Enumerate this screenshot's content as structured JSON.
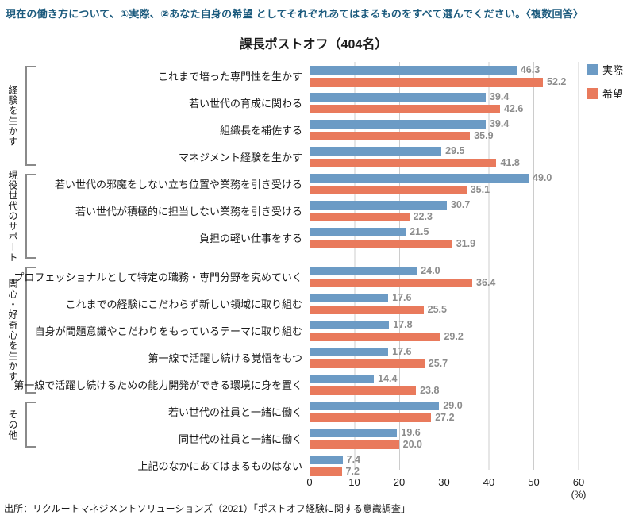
{
  "page": {
    "instruction": "現在の働き方について、①実際、②あなた自身の希望 としてそれぞれあてはまるものをすべて選んでください。〈複数回答〉",
    "source": "出所：リクルートマネジメントソリューションズ（2021）「ポストオフ経験に関する意識調査」"
  },
  "colors": {
    "actual": "#6C9BC5",
    "hope": "#E97A5C",
    "instruction_text": "#1b5a7d",
    "value_label": "#8c8c8c",
    "gridline": "#cccccc"
  },
  "chart_data": {
    "type": "bar",
    "orientation": "horizontal",
    "title": "課長ポストオフ（404名）",
    "xlabel": "(%)",
    "xlim": [
      0,
      60
    ],
    "xticks": [
      "0",
      "10",
      "20",
      "30",
      "40",
      "50",
      "60"
    ],
    "unit": "(%)",
    "grid": true,
    "legend_position": "top-right",
    "legend": [
      {
        "name": "実際",
        "color": "#6C9BC5"
      },
      {
        "name": "希望",
        "color": "#E97A5C"
      }
    ],
    "groups": [
      {
        "label": "経験を生かす",
        "item_indexes": [
          0,
          1,
          2,
          3
        ]
      },
      {
        "label": "現役世代のサポート",
        "item_indexes": [
          4,
          5,
          6
        ]
      },
      {
        "label": "関心・好奇心を生かす",
        "item_indexes": [
          7,
          8,
          9,
          10,
          11
        ]
      },
      {
        "label": "その他",
        "item_indexes": [
          12,
          13
        ]
      }
    ],
    "series_names": [
      "実際",
      "希望"
    ],
    "items": [
      {
        "label": "これまで培った専門性を生かす",
        "actual": "46.3",
        "hope": "52.2"
      },
      {
        "label": "若い世代の育成に関わる",
        "actual": "39.4",
        "hope": "42.6"
      },
      {
        "label": "組織長を補佐する",
        "actual": "39.4",
        "hope": "35.9"
      },
      {
        "label": "マネジメント経験を生かす",
        "actual": "29.5",
        "hope": "41.8"
      },
      {
        "label": "若い世代の邪魔をしない立ち位置や業務を引き受ける",
        "actual": "49.0",
        "hope": "35.1"
      },
      {
        "label": "若い世代が積極的に担当しない業務を引き受ける",
        "actual": "30.7",
        "hope": "22.3"
      },
      {
        "label": "負担の軽い仕事をする",
        "actual": "21.5",
        "hope": "31.9"
      },
      {
        "label": "プロフェッショナルとして特定の職務・専門分野を究めていく",
        "actual": "24.0",
        "hope": "36.4"
      },
      {
        "label": "これまでの経験にこだわらず新しい領域に取り組む",
        "actual": "17.6",
        "hope": "25.5"
      },
      {
        "label": "自身が問題意識やこだわりをもっているテーマに取り組む",
        "actual": "17.8",
        "hope": "29.2"
      },
      {
        "label": "第一線で活躍し続ける覚悟をもつ",
        "actual": "17.6",
        "hope": "25.7"
      },
      {
        "label": "第一線で活躍し続けるための能力開発ができる環境に身を置く",
        "actual": "14.4",
        "hope": "23.8"
      },
      {
        "label": "若い世代の社員と一緒に働く",
        "actual": "29.0",
        "hope": "27.2"
      },
      {
        "label": "同世代の社員と一緒に働く",
        "actual": "19.6",
        "hope": "20.0"
      },
      {
        "label": "上記のなかにあてはまるものはない",
        "actual": "7.4",
        "hope": "7.2"
      }
    ]
  }
}
